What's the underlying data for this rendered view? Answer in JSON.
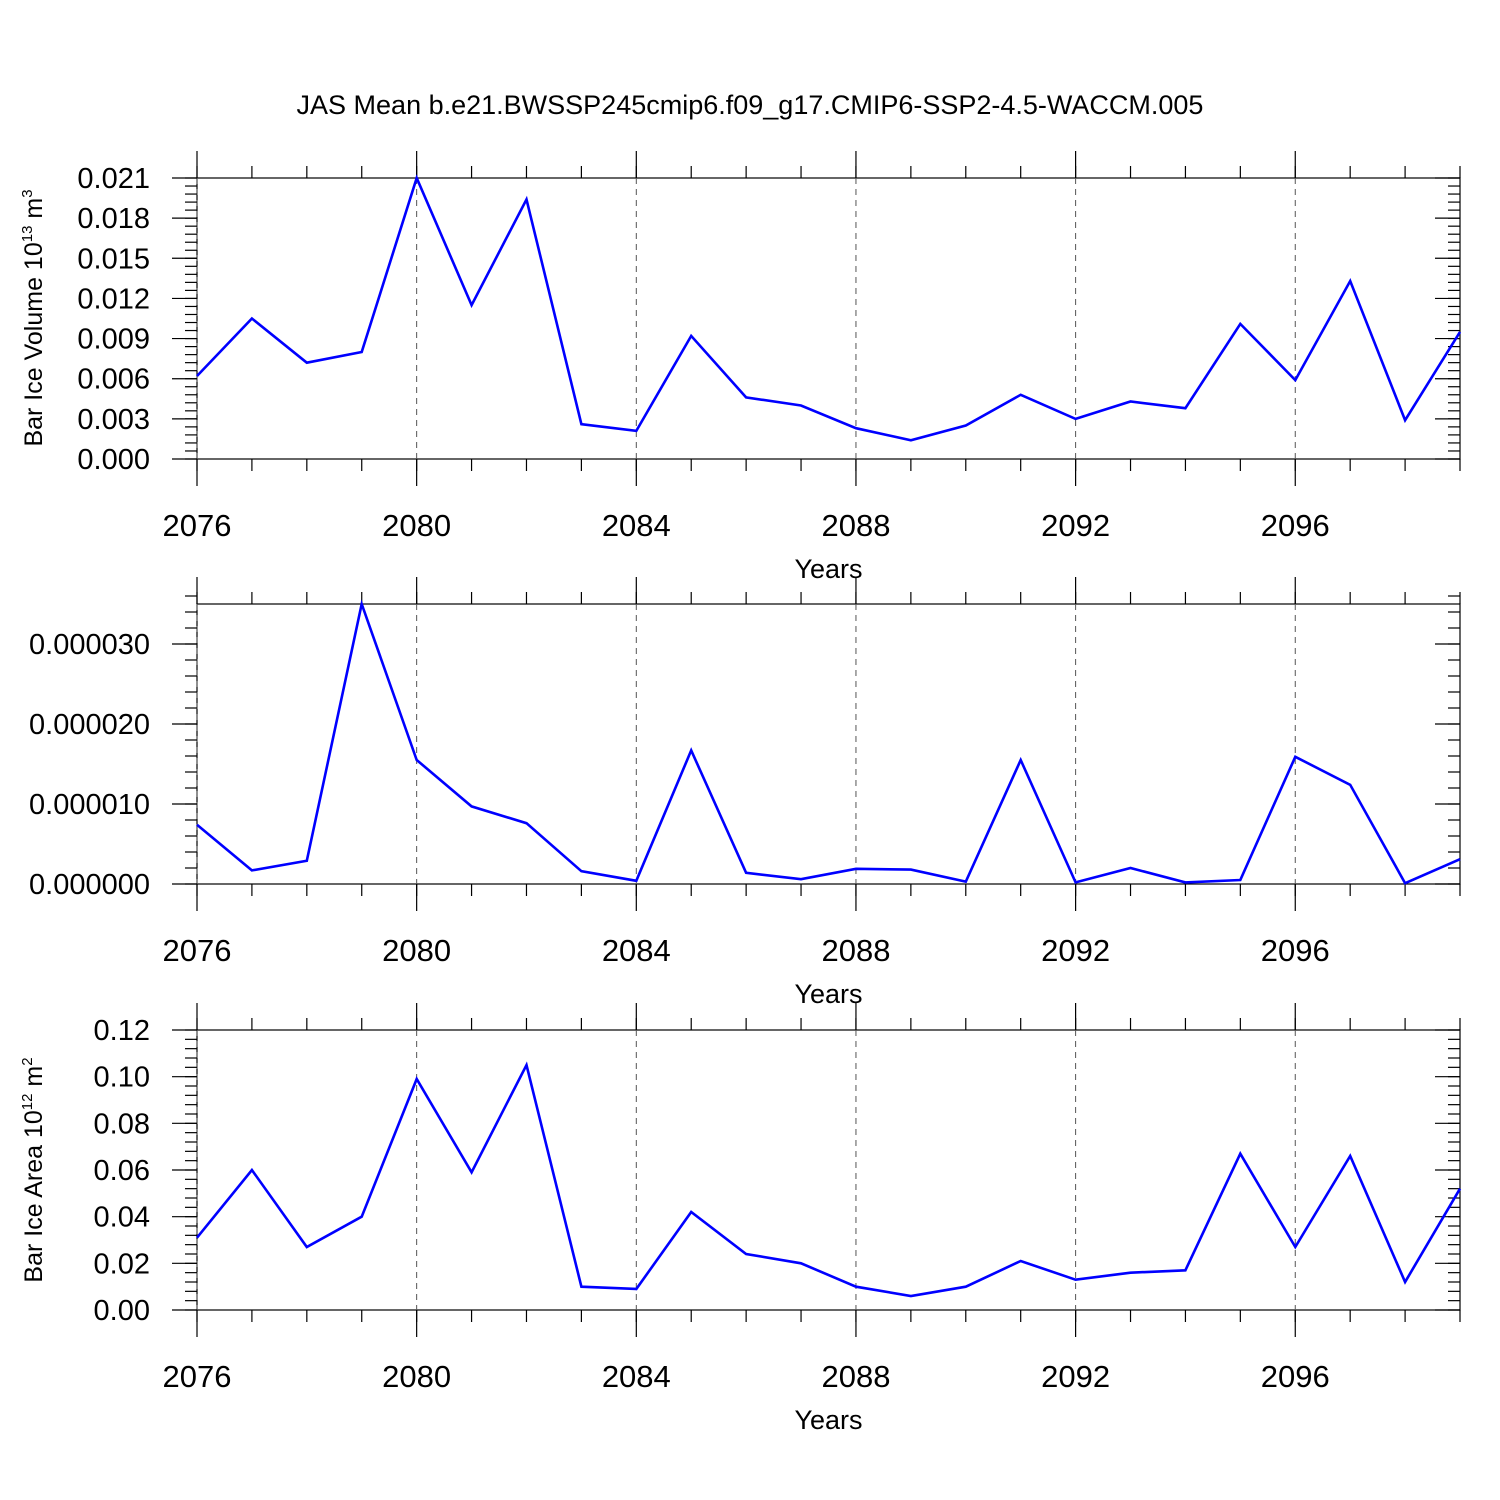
{
  "figure": {
    "title": "JAS Mean b.e21.BWSSP245cmip6.f09_g17.CMIP6-SSP2-4.5-WACCM.005"
  },
  "chart_data": [
    {
      "type": "line",
      "xlabel": "Years",
      "ylabel": "Bar Ice Volume 10",
      "ylabel_exponent": "13",
      "ylabel_unit": " m",
      "ylabel_unit_exponent": "3",
      "xlim": [
        2076,
        2099
      ],
      "ylim": [
        0,
        0.021
      ],
      "x_ticks": [
        "2076",
        "2080",
        "2084",
        "2088",
        "2092",
        "2096"
      ],
      "y_ticks": [
        "0.000",
        "0.003",
        "0.006",
        "0.009",
        "0.012",
        "0.015",
        "0.018",
        "0.021"
      ],
      "grid": "dashed vertical at major x ticks",
      "color": "#0000ff",
      "x": [
        2076,
        2077,
        2078,
        2079,
        2080,
        2081,
        2082,
        2083,
        2084,
        2085,
        2086,
        2087,
        2088,
        2089,
        2090,
        2091,
        2092,
        2093,
        2094,
        2095,
        2096,
        2097,
        2098,
        2099
      ],
      "values": [
        0.0062,
        0.0105,
        0.0072,
        0.008,
        0.021,
        0.0115,
        0.0194,
        0.0026,
        0.0021,
        0.0092,
        0.0046,
        0.004,
        0.0023,
        0.0014,
        0.0025,
        0.0048,
        0.003,
        0.0043,
        0.0038,
        0.0101,
        0.0059,
        0.0133,
        0.0029,
        0.0095
      ]
    },
    {
      "type": "line",
      "xlabel": "Years",
      "ylabel": "",
      "xlim": [
        2076,
        2099
      ],
      "ylim": [
        0,
        3.5e-05
      ],
      "x_ticks": [
        "2076",
        "2080",
        "2084",
        "2088",
        "2092",
        "2096"
      ],
      "y_ticks": [
        "0.000000",
        "0.000010",
        "0.000020",
        "0.000030"
      ],
      "grid": "dashed vertical at major x ticks",
      "color": "#0000ff",
      "x": [
        2076,
        2077,
        2078,
        2079,
        2080,
        2081,
        2082,
        2083,
        2084,
        2085,
        2086,
        2087,
        2088,
        2089,
        2090,
        2091,
        2092,
        2093,
        2094,
        2095,
        2096,
        2097,
        2098,
        2099
      ],
      "values": [
        7.4e-06,
        1.7e-06,
        2.9e-06,
        3.5e-05,
        1.55e-05,
        9.7e-06,
        7.6e-06,
        1.6e-06,
        4e-07,
        1.67e-05,
        1.4e-06,
        6e-07,
        1.9e-06,
        1.8e-06,
        3e-07,
        1.55e-05,
        2e-07,
        2e-06,
        2e-07,
        5e-07,
        1.59e-05,
        1.24e-05,
        1e-07,
        3.1e-06
      ]
    },
    {
      "type": "line",
      "xlabel": "Years",
      "ylabel": "Bar Ice Area 10",
      "ylabel_exponent": "12",
      "ylabel_unit": " m",
      "ylabel_unit_exponent": "2",
      "xlim": [
        2076,
        2099
      ],
      "ylim": [
        0,
        0.12
      ],
      "x_ticks": [
        "2076",
        "2080",
        "2084",
        "2088",
        "2092",
        "2096"
      ],
      "y_ticks": [
        "0.00",
        "0.02",
        "0.04",
        "0.06",
        "0.08",
        "0.10",
        "0.12"
      ],
      "grid": "dashed vertical at major x ticks",
      "color": "#0000ff",
      "x": [
        2076,
        2077,
        2078,
        2079,
        2080,
        2081,
        2082,
        2083,
        2084,
        2085,
        2086,
        2087,
        2088,
        2089,
        2090,
        2091,
        2092,
        2093,
        2094,
        2095,
        2096,
        2097,
        2098,
        2099
      ],
      "values": [
        0.031,
        0.06,
        0.027,
        0.04,
        0.099,
        0.059,
        0.105,
        0.01,
        0.009,
        0.042,
        0.024,
        0.02,
        0.01,
        0.006,
        0.01,
        0.021,
        0.013,
        0.016,
        0.017,
        0.067,
        0.027,
        0.066,
        0.012,
        0.052
      ]
    }
  ]
}
